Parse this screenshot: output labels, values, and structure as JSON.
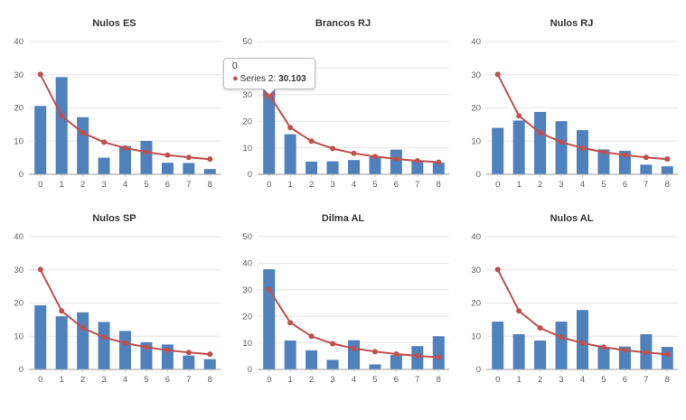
{
  "layout": {
    "grid": "2 rows x 3 columns",
    "background": "#ffffff",
    "legend": "none",
    "gridlines": "horizontal"
  },
  "palette": {
    "bar": "#4f81bd",
    "line": "#c0504d",
    "grid": "#e6e6e6",
    "axis": "#9b9b9b",
    "tick": "#cccccc",
    "label": "#606060",
    "title": "#333333",
    "tooltip_border": "#bdbdbd"
  },
  "tooltip": {
    "chart_index": 1,
    "point_index": 0,
    "category": "0",
    "series_label": "Series 2:",
    "value": "30.103",
    "marker_icon": "round-dot"
  },
  "chart_data": [
    {
      "type": "bar",
      "title": "Nulos ES",
      "categories": [
        "0",
        "1",
        "2",
        "3",
        "4",
        "5",
        "6",
        "7",
        "8"
      ],
      "bars": [
        20.6,
        29.3,
        17.2,
        5.0,
        8.5,
        10.1,
        3.5,
        3.4,
        1.6
      ],
      "line": {
        "name": "Series 2",
        "values": [
          30.103,
          17.609,
          12.494,
          9.691,
          7.918,
          6.695,
          5.799,
          5.115,
          4.576
        ]
      },
      "xlabel": "",
      "ylabel": "",
      "ylim": [
        0,
        40
      ],
      "yticks": [
        0,
        10,
        20,
        30,
        40
      ],
      "grid": true,
      "legend": "none"
    },
    {
      "type": "bar",
      "title": "Brancos RJ",
      "categories": [
        "0",
        "1",
        "2",
        "3",
        "4",
        "5",
        "6",
        "7",
        "8"
      ],
      "bars": [
        34.0,
        15.1,
        4.8,
        4.9,
        5.4,
        6.6,
        9.3,
        5.0,
        4.4
      ],
      "line": {
        "name": "Series 2",
        "values": [
          30.103,
          17.609,
          12.494,
          9.691,
          7.918,
          6.695,
          5.799,
          5.115,
          4.576
        ]
      },
      "xlabel": "",
      "ylabel": "",
      "ylim": [
        0,
        50
      ],
      "yticks": [
        0,
        10,
        20,
        30,
        40,
        50
      ],
      "grid": true,
      "legend": "none"
    },
    {
      "type": "bar",
      "title": "Nulos RJ",
      "categories": [
        "0",
        "1",
        "2",
        "3",
        "4",
        "5",
        "6",
        "7",
        "8"
      ],
      "bars": [
        14.0,
        16.2,
        18.8,
        16.0,
        13.3,
        7.5,
        7.1,
        2.9,
        2.4
      ],
      "line": {
        "name": "Series 2",
        "values": [
          30.103,
          17.609,
          12.494,
          9.691,
          7.918,
          6.695,
          5.799,
          5.115,
          4.576
        ]
      },
      "xlabel": "",
      "ylabel": "",
      "ylim": [
        0,
        40
      ],
      "yticks": [
        0,
        10,
        20,
        30,
        40
      ],
      "grid": true,
      "legend": "none"
    },
    {
      "type": "bar",
      "title": "Nulos SP",
      "categories": [
        "0",
        "1",
        "2",
        "3",
        "4",
        "5",
        "6",
        "7",
        "8"
      ],
      "bars": [
        19.3,
        16.0,
        17.2,
        14.3,
        11.6,
        8.2,
        7.5,
        4.2,
        3.1
      ],
      "line": {
        "name": "Series 2",
        "values": [
          30.103,
          17.609,
          12.494,
          9.691,
          7.918,
          6.695,
          5.799,
          5.115,
          4.576
        ]
      },
      "xlabel": "",
      "ylabel": "",
      "ylim": [
        0,
        40
      ],
      "yticks": [
        0,
        10,
        20,
        30,
        40
      ],
      "grid": true,
      "legend": "none"
    },
    {
      "type": "bar",
      "title": "Dilma AL",
      "categories": [
        "0",
        "1",
        "2",
        "3",
        "4",
        "5",
        "6",
        "7",
        "8"
      ],
      "bars": [
        37.7,
        10.9,
        7.2,
        3.6,
        11.0,
        1.9,
        5.4,
        8.8,
        12.5
      ],
      "line": {
        "name": "Series 2",
        "values": [
          30.103,
          17.609,
          12.494,
          9.691,
          7.918,
          6.695,
          5.799,
          5.115,
          4.576
        ]
      },
      "xlabel": "",
      "ylabel": "",
      "ylim": [
        0,
        50
      ],
      "yticks": [
        0,
        10,
        20,
        30,
        40,
        50
      ],
      "grid": true,
      "legend": "none"
    },
    {
      "type": "bar",
      "title": "Nulos AL",
      "categories": [
        "0",
        "1",
        "2",
        "3",
        "4",
        "5",
        "6",
        "7",
        "8"
      ],
      "bars": [
        14.4,
        10.6,
        8.7,
        14.4,
        17.9,
        6.7,
        6.9,
        10.6,
        6.8
      ],
      "line": {
        "name": "Series 2",
        "values": [
          30.103,
          17.609,
          12.494,
          9.691,
          7.918,
          6.695,
          5.799,
          5.115,
          4.576
        ]
      },
      "xlabel": "",
      "ylabel": "",
      "ylim": [
        0,
        40
      ],
      "yticks": [
        0,
        10,
        20,
        30,
        40
      ],
      "grid": true,
      "legend": "none"
    }
  ]
}
